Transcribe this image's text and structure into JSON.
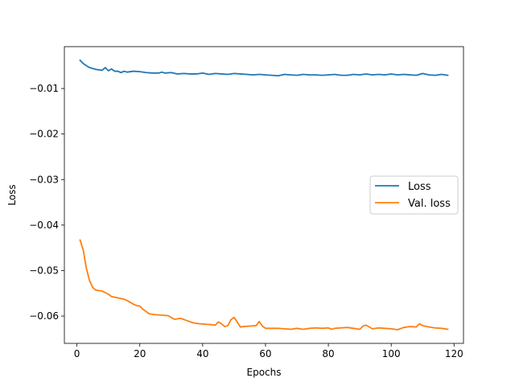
{
  "chart_data": {
    "type": "line",
    "title": "",
    "xlabel": "Epochs",
    "ylabel": "Loss",
    "xlim": [
      -4,
      123
    ],
    "ylim": [
      -0.066,
      -0.0008
    ],
    "xticks": [
      0,
      20,
      40,
      60,
      80,
      100,
      120
    ],
    "yticks": [
      -0.06,
      -0.05,
      -0.04,
      -0.03,
      -0.02,
      -0.01
    ],
    "xtick_labels": [
      "0",
      "20",
      "40",
      "60",
      "80",
      "100",
      "120"
    ],
    "ytick_labels": [
      "−0.06",
      "−0.05",
      "−0.04",
      "−0.03",
      "−0.02",
      "−0.01"
    ],
    "grid": false,
    "legend": "center-right",
    "series": [
      {
        "name": "Loss",
        "color": "#1f77b4",
        "points": [
          [
            1,
            -0.0038
          ],
          [
            2,
            -0.0045
          ],
          [
            3,
            -0.005
          ],
          [
            4,
            -0.0054
          ],
          [
            5,
            -0.0056
          ],
          [
            6,
            -0.0058
          ],
          [
            7,
            -0.0059
          ],
          [
            8,
            -0.006
          ],
          [
            9,
            -0.0054
          ],
          [
            10,
            -0.0061
          ],
          [
            11,
            -0.0057
          ],
          [
            12,
            -0.0062
          ],
          [
            13,
            -0.0062
          ],
          [
            14,
            -0.0065
          ],
          [
            15,
            -0.0062
          ],
          [
            16,
            -0.0064
          ],
          [
            18,
            -0.0062
          ],
          [
            20,
            -0.0063
          ],
          [
            22,
            -0.0065
          ],
          [
            24,
            -0.0066
          ],
          [
            26,
            -0.0066
          ],
          [
            27,
            -0.0064
          ],
          [
            28,
            -0.0066
          ],
          [
            30,
            -0.0065
          ],
          [
            32,
            -0.0068
          ],
          [
            34,
            -0.0067
          ],
          [
            36,
            -0.0068
          ],
          [
            38,
            -0.0068
          ],
          [
            40,
            -0.0066
          ],
          [
            42,
            -0.0069
          ],
          [
            44,
            -0.0067
          ],
          [
            46,
            -0.0068
          ],
          [
            48,
            -0.0069
          ],
          [
            50,
            -0.0067
          ],
          [
            52,
            -0.0068
          ],
          [
            54,
            -0.0069
          ],
          [
            56,
            -0.007
          ],
          [
            58,
            -0.0069
          ],
          [
            60,
            -0.007
          ],
          [
            62,
            -0.0071
          ],
          [
            64,
            -0.0072
          ],
          [
            66,
            -0.0069
          ],
          [
            68,
            -0.007
          ],
          [
            70,
            -0.0071
          ],
          [
            72,
            -0.0069
          ],
          [
            74,
            -0.007
          ],
          [
            76,
            -0.007
          ],
          [
            78,
            -0.0071
          ],
          [
            80,
            -0.007
          ],
          [
            82,
            -0.0069
          ],
          [
            84,
            -0.0071
          ],
          [
            86,
            -0.0071
          ],
          [
            88,
            -0.0069
          ],
          [
            90,
            -0.007
          ],
          [
            92,
            -0.0068
          ],
          [
            94,
            -0.007
          ],
          [
            96,
            -0.0069
          ],
          [
            98,
            -0.007
          ],
          [
            100,
            -0.0068
          ],
          [
            102,
            -0.007
          ],
          [
            104,
            -0.0069
          ],
          [
            106,
            -0.007
          ],
          [
            108,
            -0.0071
          ],
          [
            110,
            -0.0067
          ],
          [
            112,
            -0.007
          ],
          [
            114,
            -0.0071
          ],
          [
            116,
            -0.0069
          ],
          [
            118,
            -0.0071
          ]
        ]
      },
      {
        "name": "Val. loss",
        "color": "#ff7f0e",
        "points": [
          [
            1,
            -0.0433
          ],
          [
            2,
            -0.0455
          ],
          [
            3,
            -0.0495
          ],
          [
            4,
            -0.0522
          ],
          [
            5,
            -0.0537
          ],
          [
            6,
            -0.0543
          ],
          [
            8,
            -0.0545
          ],
          [
            10,
            -0.0552
          ],
          [
            11,
            -0.0557
          ],
          [
            13,
            -0.056
          ],
          [
            15,
            -0.0563
          ],
          [
            16,
            -0.0566
          ],
          [
            17,
            -0.057
          ],
          [
            18,
            -0.0574
          ],
          [
            19,
            -0.0577
          ],
          [
            20,
            -0.0578
          ],
          [
            21,
            -0.0585
          ],
          [
            22,
            -0.059
          ],
          [
            23,
            -0.0595
          ],
          [
            25,
            -0.0597
          ],
          [
            27,
            -0.0598
          ],
          [
            29,
            -0.0599
          ],
          [
            31,
            -0.0607
          ],
          [
            33,
            -0.0605
          ],
          [
            35,
            -0.061
          ],
          [
            37,
            -0.0615
          ],
          [
            39,
            -0.0617
          ],
          [
            41,
            -0.0618
          ],
          [
            43,
            -0.0619
          ],
          [
            44,
            -0.062
          ],
          [
            45,
            -0.0613
          ],
          [
            46,
            -0.0617
          ],
          [
            47,
            -0.0623
          ],
          [
            48,
            -0.0621
          ],
          [
            49,
            -0.0608
          ],
          [
            50,
            -0.0603
          ],
          [
            51,
            -0.0613
          ],
          [
            52,
            -0.0624
          ],
          [
            53,
            -0.0623
          ],
          [
            55,
            -0.0622
          ],
          [
            57,
            -0.0621
          ],
          [
            58,
            -0.0612
          ],
          [
            59,
            -0.0622
          ],
          [
            60,
            -0.0627
          ],
          [
            62,
            -0.0627
          ],
          [
            64,
            -0.0627
          ],
          [
            66,
            -0.0628
          ],
          [
            68,
            -0.0629
          ],
          [
            70,
            -0.0627
          ],
          [
            72,
            -0.0629
          ],
          [
            74,
            -0.0627
          ],
          [
            76,
            -0.0626
          ],
          [
            78,
            -0.0627
          ],
          [
            80,
            -0.0626
          ],
          [
            81,
            -0.0629
          ],
          [
            82,
            -0.0627
          ],
          [
            84,
            -0.0626
          ],
          [
            86,
            -0.0625
          ],
          [
            88,
            -0.0627
          ],
          [
            90,
            -0.0629
          ],
          [
            91,
            -0.0622
          ],
          [
            92,
            -0.062
          ],
          [
            94,
            -0.0628
          ],
          [
            96,
            -0.0626
          ],
          [
            98,
            -0.0627
          ],
          [
            100,
            -0.0628
          ],
          [
            102,
            -0.063
          ],
          [
            104,
            -0.0625
          ],
          [
            106,
            -0.0623
          ],
          [
            108,
            -0.0624
          ],
          [
            109,
            -0.0617
          ],
          [
            110,
            -0.0621
          ],
          [
            112,
            -0.0624
          ],
          [
            114,
            -0.0626
          ],
          [
            116,
            -0.0627
          ],
          [
            118,
            -0.0629
          ]
        ]
      }
    ]
  }
}
